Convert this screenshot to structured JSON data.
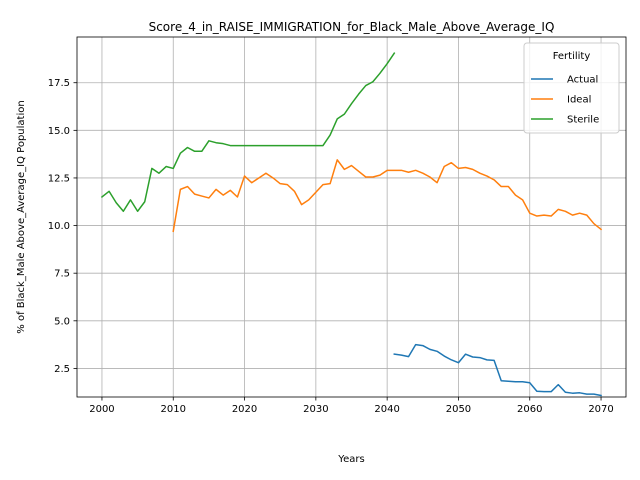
{
  "chart_data": {
    "type": "line",
    "title": "Score_4_in_RAISE_IMMIGRATION_for_Black_Male_Above_Average_IQ",
    "xlabel": "Years",
    "ylabel": "% of Black_Male Above_Average_IQ Population",
    "xlim": [
      1996.5,
      2073.5
    ],
    "ylim": [
      1.0,
      19.9
    ],
    "xticks": [
      2000,
      2010,
      2020,
      2030,
      2040,
      2050,
      2060,
      2070
    ],
    "yticks": [
      2.5,
      5.0,
      7.5,
      10.0,
      12.5,
      15.0,
      17.5
    ],
    "ytick_labels": [
      "2.5",
      "5.0",
      "7.5",
      "10.0",
      "12.5",
      "15.0",
      "17.5"
    ],
    "grid": true,
    "legend": {
      "title": "Fertility",
      "placement": "top-right"
    },
    "series": [
      {
        "name": "Actual",
        "color": "#1f77b4",
        "x": [
          2041,
          2042,
          2043,
          2044,
          2045,
          2046,
          2047,
          2048,
          2049,
          2050,
          2051,
          2052,
          2053,
          2054,
          2055,
          2056,
          2057,
          2058,
          2059,
          2060,
          2061,
          2062,
          2063,
          2064,
          2065,
          2066,
          2067,
          2068,
          2069,
          2070
        ],
        "y": [
          3.25,
          3.2,
          3.12,
          3.75,
          3.7,
          3.5,
          3.4,
          3.15,
          2.95,
          2.8,
          3.25,
          3.1,
          3.07,
          2.95,
          2.92,
          1.85,
          1.83,
          1.8,
          1.8,
          1.75,
          1.3,
          1.28,
          1.28,
          1.65,
          1.25,
          1.2,
          1.22,
          1.15,
          1.15,
          1.08
        ]
      },
      {
        "name": "Ideal",
        "color": "#ff7f0e",
        "x": [
          2010,
          2011,
          2012,
          2013,
          2014,
          2015,
          2016,
          2017,
          2018,
          2019,
          2020,
          2021,
          2022,
          2023,
          2024,
          2025,
          2026,
          2027,
          2028,
          2029,
          2030,
          2031,
          2032,
          2033,
          2034,
          2035,
          2036,
          2037,
          2038,
          2039,
          2040,
          2041,
          2042,
          2043,
          2044,
          2045,
          2046,
          2047,
          2048,
          2049,
          2050,
          2051,
          2052,
          2053,
          2054,
          2055,
          2056,
          2057,
          2058,
          2059,
          2060,
          2061,
          2062,
          2063,
          2064,
          2065,
          2066,
          2067,
          2068,
          2069,
          2070
        ],
        "y": [
          9.7,
          11.9,
          12.05,
          11.65,
          11.55,
          11.45,
          11.9,
          11.6,
          11.85,
          11.5,
          12.6,
          12.25,
          12.5,
          12.75,
          12.5,
          12.2,
          12.15,
          11.8,
          11.1,
          11.35,
          11.75,
          12.15,
          12.2,
          13.45,
          12.95,
          13.15,
          12.85,
          12.55,
          12.55,
          12.65,
          12.9,
          12.9,
          12.9,
          12.8,
          12.9,
          12.75,
          12.55,
          12.25,
          13.1,
          13.3,
          13.0,
          13.05,
          12.95,
          12.75,
          12.6,
          12.4,
          12.05,
          12.05,
          11.6,
          11.35,
          10.65,
          10.5,
          10.55,
          10.5,
          10.85,
          10.75,
          10.55,
          10.65,
          10.55,
          10.1,
          9.8
        ]
      },
      {
        "name": "Sterile",
        "color": "#2ca02c",
        "x": [
          2000,
          2001,
          2002,
          2003,
          2004,
          2005,
          2006,
          2007,
          2008,
          2009,
          2010,
          2011,
          2012,
          2013,
          2014,
          2015,
          2016,
          2017,
          2018,
          2019,
          2020,
          2021,
          2022,
          2023,
          2024,
          2025,
          2026,
          2027,
          2028,
          2029,
          2030,
          2031,
          2032,
          2033,
          2034,
          2035,
          2036,
          2037,
          2038,
          2039,
          2040,
          2041
        ],
        "y": [
          11.5,
          11.8,
          11.2,
          10.75,
          11.35,
          10.75,
          11.25,
          13.0,
          12.75,
          13.1,
          13.0,
          13.8,
          14.1,
          13.9,
          13.9,
          14.45,
          14.35,
          14.3,
          14.2,
          14.2,
          14.2,
          14.2,
          14.2,
          14.2,
          14.2,
          14.2,
          14.2,
          14.2,
          14.2,
          14.2,
          14.2,
          14.2,
          14.75,
          15.6,
          15.85,
          16.4,
          16.9,
          17.35,
          17.55,
          18.0,
          18.5,
          19.05
        ]
      }
    ]
  }
}
